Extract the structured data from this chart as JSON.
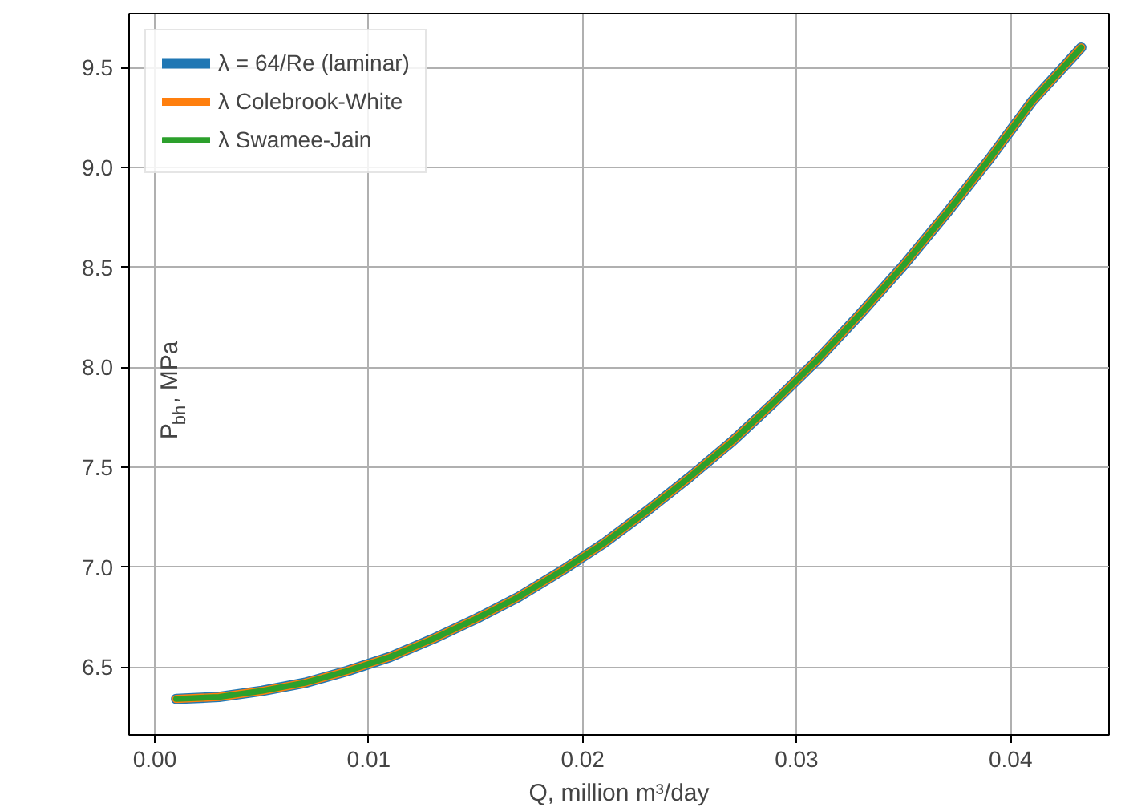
{
  "chart_data": {
    "type": "line",
    "xlabel": "Q, million m³/day",
    "ylabel": "P$_{bh}$, MPa",
    "x": [
      0.001,
      0.003,
      0.005,
      0.007,
      0.009,
      0.011,
      0.013,
      0.015,
      0.017,
      0.019,
      0.021,
      0.023,
      0.025,
      0.027,
      0.029,
      0.031,
      0.033,
      0.035,
      0.037,
      0.039,
      0.041,
      0.0433
    ],
    "series": [
      {
        "name": "λ = 64/Re (laminar)",
        "color": "#1f77b4",
        "values": [
          6.34,
          6.35,
          6.38,
          6.42,
          6.48,
          6.55,
          6.64,
          6.74,
          6.85,
          6.98,
          7.12,
          7.28,
          7.45,
          7.63,
          7.83,
          8.04,
          8.27,
          8.51,
          8.77,
          9.04,
          9.33,
          9.6
        ]
      },
      {
        "name": "λ Colebrook-White",
        "color": "#ff7f0e",
        "values": [
          6.34,
          6.35,
          6.38,
          6.42,
          6.48,
          6.55,
          6.64,
          6.74,
          6.85,
          6.98,
          7.12,
          7.28,
          7.45,
          7.63,
          7.83,
          8.04,
          8.27,
          8.51,
          8.77,
          9.04,
          9.33,
          9.6
        ]
      },
      {
        "name": "λ Swamee-Jain",
        "color": "#2ca02c",
        "values": [
          6.34,
          6.35,
          6.38,
          6.42,
          6.48,
          6.55,
          6.64,
          6.74,
          6.85,
          6.98,
          7.12,
          7.28,
          7.45,
          7.63,
          7.83,
          8.04,
          8.27,
          8.51,
          8.77,
          9.04,
          9.33,
          9.6
        ]
      }
    ],
    "xlim": [
      -0.0012,
      0.0446
    ],
    "ylim": [
      6.16,
      9.77
    ],
    "xticks": [
      {
        "value": 0,
        "label": "0.00"
      },
      0.01,
      0.02,
      0.03,
      0.04
    ],
    "yticks": [
      6.5,
      {
        "value": 7,
        "label": "7.0"
      },
      7.5,
      {
        "value": 8,
        "label": "8.0"
      },
      8.5,
      {
        "value": 9,
        "label": "9.0"
      },
      9.5
    ],
    "grid": true,
    "legend": "top left",
    "marker": "none",
    "line_style": "solid"
  }
}
